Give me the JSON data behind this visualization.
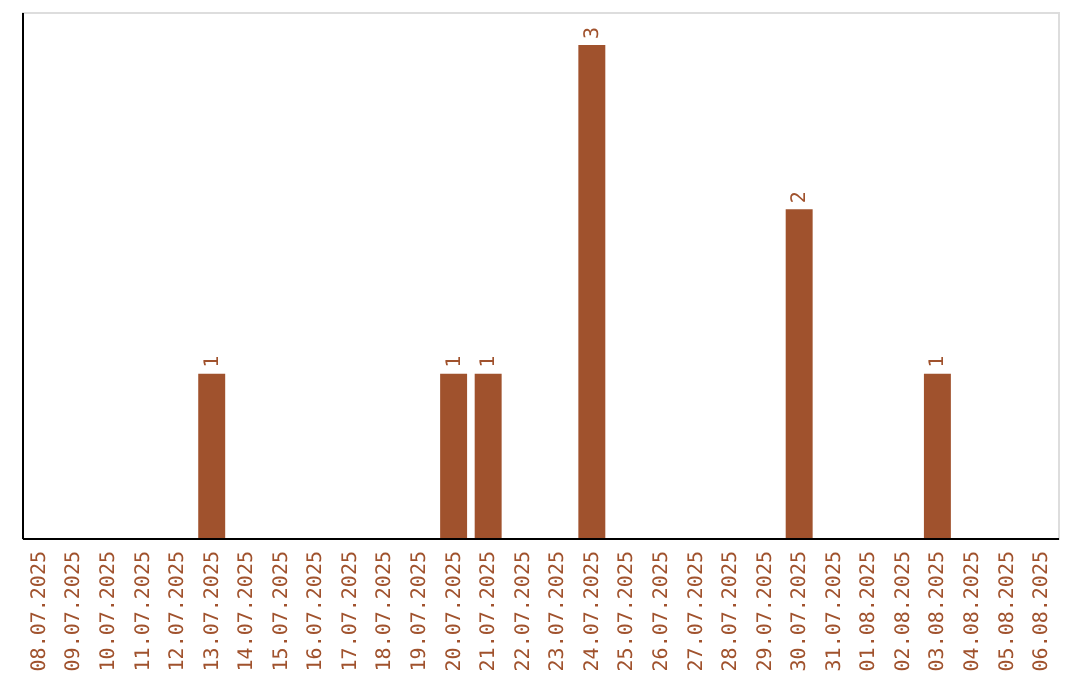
{
  "chart_data": {
    "type": "bar",
    "categories": [
      "08.07.2025",
      "09.07.2025",
      "10.07.2025",
      "11.07.2025",
      "12.07.2025",
      "13.07.2025",
      "14.07.2025",
      "15.07.2025",
      "16.07.2025",
      "17.07.2025",
      "18.07.2025",
      "19.07.2025",
      "20.07.2025",
      "21.07.2025",
      "22.07.2025",
      "23.07.2025",
      "24.07.2025",
      "25.07.2025",
      "26.07.2025",
      "27.07.2025",
      "28.07.2025",
      "29.07.2025",
      "30.07.2025",
      "31.07.2025",
      "01.08.2025",
      "02.08.2025",
      "03.08.2025",
      "04.08.2025",
      "05.08.2025",
      "06.08.2025"
    ],
    "values": [
      0,
      0,
      0,
      0,
      0,
      1,
      0,
      0,
      0,
      0,
      0,
      0,
      1,
      1,
      0,
      0,
      3,
      0,
      0,
      0,
      0,
      0,
      2,
      0,
      0,
      0,
      1,
      0,
      0,
      0
    ],
    "value_labels": [
      null,
      null,
      null,
      null,
      null,
      "1",
      null,
      null,
      null,
      null,
      null,
      null,
      "1",
      "1",
      null,
      null,
      "3",
      null,
      null,
      null,
      null,
      null,
      "2",
      null,
      null,
      null,
      "1",
      null,
      null,
      null
    ],
    "color": "#a0522d",
    "ylim": [
      0,
      3.2
    ],
    "grid": false
  }
}
